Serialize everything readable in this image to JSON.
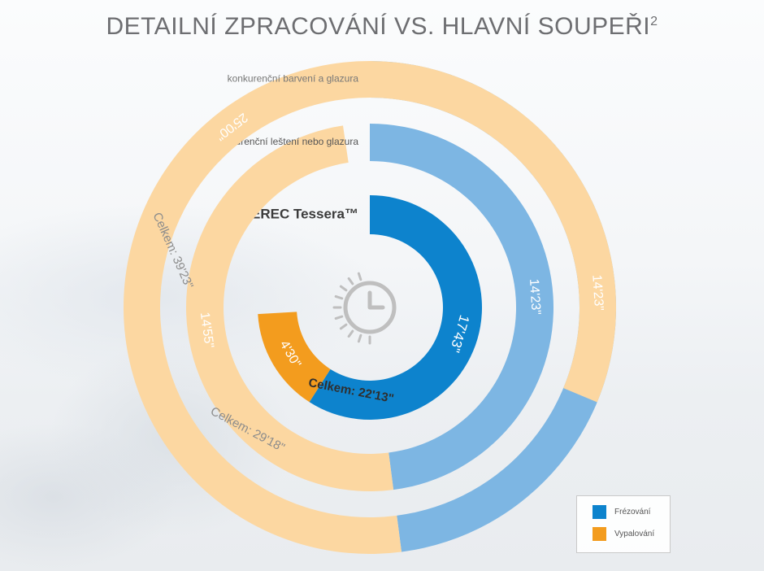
{
  "title": "DETAILNÍ ZPRACOVÁNÍ VS. HLAVNÍ SOUPEŘI",
  "title_superscript": "2",
  "clock_icon": "clock-icon",
  "colors": {
    "milling": "#0d83cd",
    "firing": "#f39c1e",
    "milling_light": "#7db6e3",
    "firing_light": "#fcd7a1",
    "clock": "#bfbfbf"
  },
  "legend": [
    {
      "label": "Frézování",
      "color": "#0d83cd"
    },
    {
      "label": "Vypalování",
      "color": "#f39c1e"
    }
  ],
  "chart_data": {
    "type": "radial bar",
    "unit": "minutes'seconds\"",
    "categories": [
      "CEREC Tessera™",
      "konkurenční leštení nebo glazura",
      "konkurenční barvení a glazura"
    ],
    "series": [
      {
        "name": "Frézování",
        "labels": [
          "17'43\"",
          "14'23\"",
          "14'23\""
        ],
        "seconds": [
          1063,
          863,
          863
        ]
      },
      {
        "name": "Vypalování",
        "labels": [
          "4'30\"",
          "14'55\"",
          "25'00\""
        ],
        "seconds": [
          270,
          895,
          1500
        ]
      }
    ],
    "totals": [
      "Celkem: 22'13\"",
      "Celkem: 29'18\"",
      "Celkem: 39'23\""
    ],
    "start_angle": "12 o'clock",
    "direction": "clockwise"
  }
}
